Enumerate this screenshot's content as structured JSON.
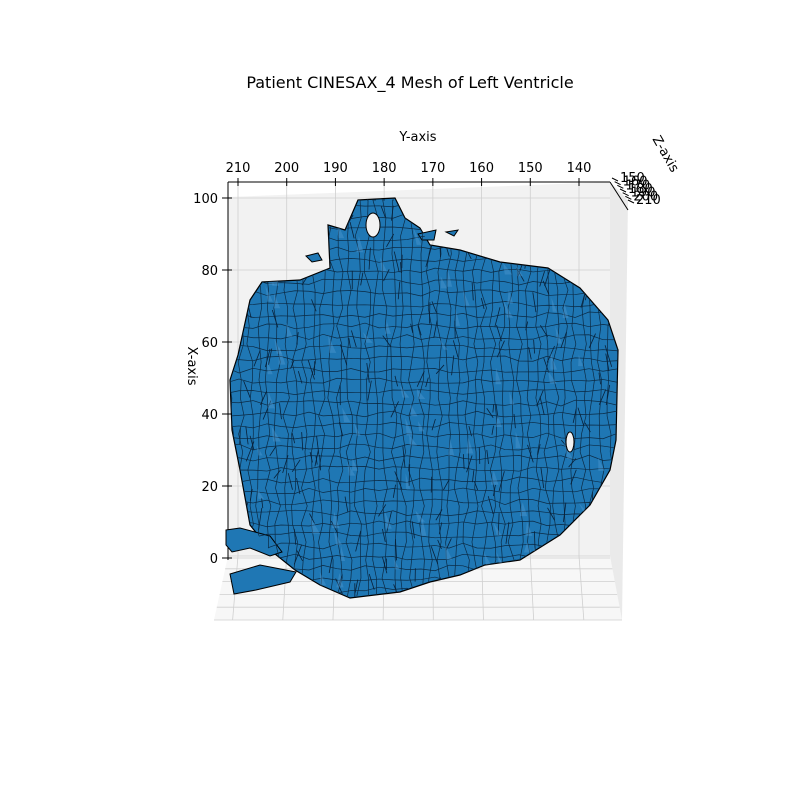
{
  "chart_data": {
    "type": "3d-surface-mesh",
    "title": "Patient CINESAX_4 Mesh of Left Ventricle",
    "xlabel": "X-axis",
    "ylabel": "Y-axis",
    "zlabel": "Z-axis",
    "x_ticks": [
      0,
      20,
      40,
      60,
      80,
      100
    ],
    "y_ticks": [
      210,
      200,
      190,
      180,
      170,
      160,
      150,
      140
    ],
    "z_ticks": [
      150,
      160,
      170,
      180,
      190,
      200,
      210
    ],
    "xlim": [
      -10,
      105
    ],
    "ylim": [
      212,
      134
    ],
    "zlim": [
      150,
      210
    ],
    "grid": true,
    "colors": {
      "face": "#1f77b4",
      "edge": "#000000",
      "pane": "#f2f2f2",
      "grid": "#cfcfcf"
    }
  }
}
